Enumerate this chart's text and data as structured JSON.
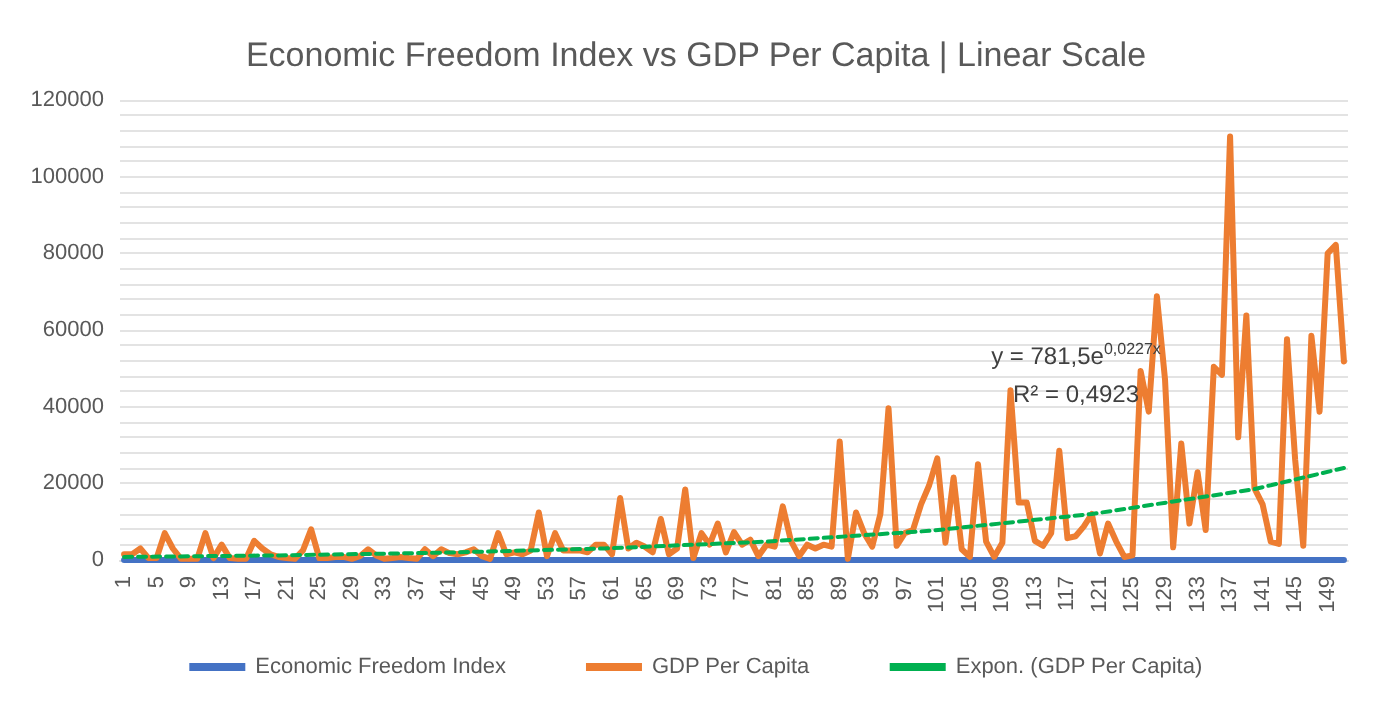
{
  "chart_data": {
    "type": "line",
    "title": "Economic Freedom Index vs GDP Per Capita | Linear Scale",
    "x": [
      1,
      2,
      3,
      4,
      5,
      6,
      7,
      8,
      9,
      10,
      11,
      12,
      13,
      14,
      15,
      16,
      17,
      18,
      19,
      20,
      21,
      22,
      23,
      24,
      25,
      26,
      27,
      28,
      29,
      30,
      31,
      32,
      33,
      34,
      35,
      36,
      37,
      38,
      39,
      40,
      41,
      42,
      43,
      44,
      45,
      46,
      47,
      48,
      49,
      50,
      51,
      52,
      53,
      54,
      55,
      56,
      57,
      58,
      59,
      60,
      61,
      62,
      63,
      64,
      65,
      66,
      67,
      68,
      69,
      70,
      71,
      72,
      73,
      74,
      75,
      76,
      77,
      78,
      79,
      80,
      81,
      82,
      83,
      84,
      85,
      86,
      87,
      88,
      89,
      90,
      91,
      92,
      93,
      94,
      95,
      96,
      97,
      98,
      99,
      100,
      101,
      102,
      103,
      104,
      105,
      106,
      107,
      108,
      109,
      110,
      111,
      112,
      113,
      114,
      115,
      116,
      117,
      118,
      119,
      120,
      121,
      122,
      123,
      124,
      125,
      126,
      127,
      128,
      129,
      130,
      131,
      132,
      133,
      134,
      135,
      136,
      137,
      138,
      139,
      140,
      141,
      142,
      143,
      144,
      145,
      146,
      147,
      148,
      149,
      150,
      151
    ],
    "series": [
      {
        "name": "Economic Freedom Index",
        "color": "#4472c4",
        "values": [
          0,
          0,
          0,
          0,
          0,
          0,
          0,
          0,
          0,
          0,
          0,
          0,
          0,
          0,
          0,
          0,
          0,
          0,
          0,
          0,
          0,
          0,
          0,
          0,
          0,
          0,
          0,
          0,
          0,
          0,
          0,
          0,
          0,
          0,
          0,
          0,
          0,
          0,
          0,
          0,
          0,
          0,
          0,
          0,
          0,
          0,
          0,
          0,
          0,
          0,
          0,
          0,
          0,
          0,
          0,
          0,
          0,
          0,
          0,
          0,
          0,
          0,
          0,
          0,
          0,
          0,
          0,
          0,
          0,
          0,
          0,
          0,
          0,
          0,
          0,
          0,
          0,
          0,
          0,
          0,
          0,
          0,
          0,
          0,
          0,
          0,
          0,
          0,
          0,
          0,
          0,
          0,
          0,
          0,
          0,
          0,
          0,
          0,
          0,
          0,
          0,
          0,
          0,
          0,
          0,
          0,
          0,
          0,
          0,
          0,
          0,
          0,
          0,
          0,
          0,
          0,
          0,
          0,
          0,
          0,
          0,
          0,
          0,
          0,
          0,
          0,
          0,
          0,
          0,
          0,
          0,
          0,
          0,
          0,
          0,
          0,
          0,
          0,
          0,
          0,
          0,
          0,
          0,
          0,
          0,
          0,
          0,
          0,
          0,
          0,
          0
        ]
      },
      {
        "name": "GDP Per Capita",
        "color": "#ed7d31",
        "values": [
          1500,
          1500,
          3000,
          500,
          500,
          7000,
          3000,
          300,
          300,
          300,
          7000,
          500,
          4000,
          500,
          300,
          300,
          5000,
          3000,
          1500,
          800,
          500,
          300,
          2500,
          8000,
          500,
          500,
          800,
          800,
          300,
          1000,
          2800,
          1200,
          300,
          500,
          800,
          500,
          300,
          2800,
          1000,
          2800,
          1800,
          1500,
          2000,
          2800,
          1000,
          300,
          7000,
          1500,
          2000,
          1500,
          2500,
          12400,
          1000,
          7000,
          2500,
          2500,
          2500,
          2000,
          4000,
          4000,
          1500,
          16200,
          3000,
          4500,
          3500,
          2000,
          10700,
          1500,
          3000,
          18400,
          500,
          7000,
          4000,
          9500,
          2000,
          7300,
          4000,
          5300,
          1000,
          4000,
          3500,
          14000,
          5000,
          1000,
          4000,
          3000,
          4000,
          3500,
          30900,
          300,
          12400,
          7000,
          3500,
          12000,
          39600,
          3700,
          7000,
          7800,
          14500,
          19500,
          26500,
          4500,
          21500,
          2800,
          800,
          25000,
          4800,
          800,
          4500,
          44300,
          15000,
          15000,
          5000,
          3700,
          7000,
          28500,
          5700,
          6200,
          8700,
          12000,
          1700,
          9500,
          4800,
          800,
          1200,
          49300,
          38700,
          68800,
          47100,
          3300,
          30400,
          9500,
          22900,
          7800,
          50400,
          48300,
          110500,
          32000,
          63800,
          18700,
          14500,
          4800,
          4200,
          57600,
          26200,
          3700,
          58500,
          38700,
          80000,
          82200,
          51800
        ]
      },
      {
        "name": "Expon. (GDP Per Capita)",
        "color": "#00b050",
        "type": "line",
        "line_style": "dashed",
        "x": [
          1,
          20,
          40,
          60,
          80,
          100,
          120,
          140,
          151
        ],
        "values": [
          800,
          1200,
          1900,
          3000,
          4800,
          7600,
          12000,
          18500,
          24000
        ]
      }
    ],
    "xlim": [
      0.5,
      151.5
    ],
    "xticks": [
      1,
      5,
      9,
      13,
      17,
      21,
      25,
      29,
      33,
      37,
      41,
      45,
      49,
      53,
      57,
      61,
      65,
      69,
      73,
      77,
      81,
      85,
      89,
      93,
      97,
      101,
      105,
      109,
      113,
      117,
      121,
      125,
      129,
      133,
      137,
      141,
      145,
      149
    ],
    "ylim": [
      0,
      120000
    ],
    "yticks": [
      0,
      {
        "value": 4000,
        "label": null
      },
      {
        "value": 8000,
        "label": null
      },
      {
        "value": 12000,
        "label": null
      },
      {
        "value": 16000,
        "label": null
      },
      20000,
      {
        "value": 24000,
        "label": null
      },
      {
        "value": 28000,
        "label": null
      },
      {
        "value": 32000,
        "label": null
      },
      {
        "value": 36000,
        "label": null
      },
      40000,
      {
        "value": 44000,
        "label": null
      },
      {
        "value": 48000,
        "label": null
      },
      {
        "value": 52000,
        "label": null
      },
      {
        "value": 56000,
        "label": null
      },
      60000,
      {
        "value": 64000,
        "label": null
      },
      {
        "value": 68000,
        "label": null
      },
      {
        "value": 72000,
        "label": null
      },
      {
        "value": 76000,
        "label": null
      },
      80000,
      {
        "value": 84000,
        "label": null
      },
      {
        "value": 88000,
        "label": null
      },
      {
        "value": 92000,
        "label": null
      },
      {
        "value": 96000,
        "label": null
      },
      100000,
      {
        "value": 104000,
        "label": null
      },
      {
        "value": 108000,
        "label": null
      },
      {
        "value": 112000,
        "label": null
      },
      {
        "value": 116000,
        "label": null
      },
      120000
    ],
    "annotations": [
      "y = 781,5e$^{0,0227x}$",
      "R² = 0,4923"
    ],
    "grid": "y",
    "legend": "bottom",
    "marker": "none",
    "line_style": "solid"
  }
}
